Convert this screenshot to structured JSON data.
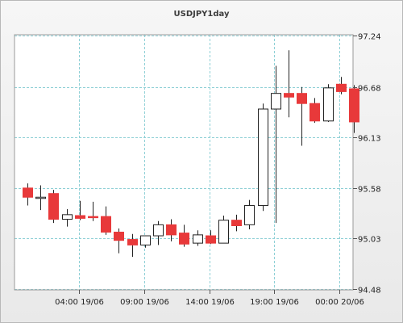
{
  "chart_data": {
    "type": "candlestick",
    "title": "USDJPY1day",
    "y_ticks": [
      "97.24",
      "96.68",
      "96.13",
      "95.58",
      "95.03",
      "94.48"
    ],
    "x_ticks": [
      "04:00 19/06",
      "09:00 19/06",
      "14:00 19/06",
      "19:00 19/06",
      "00:00 20/06"
    ],
    "ylim": [
      94.48,
      97.24
    ],
    "colors": {
      "up": "#ffffff",
      "down": "#e8393a",
      "wick": "#222222",
      "grid": "#8fd0d6",
      "band": "#ffffff"
    },
    "candles": [
      {
        "open": 95.58,
        "high": 95.63,
        "low": 95.39,
        "close": 95.48
      },
      {
        "open": 95.48,
        "high": 95.61,
        "low": 95.34,
        "close": 95.48
      },
      {
        "open": 95.52,
        "high": 95.56,
        "low": 95.2,
        "close": 95.24
      },
      {
        "open": 95.24,
        "high": 95.35,
        "low": 95.16,
        "close": 95.29
      },
      {
        "open": 95.28,
        "high": 95.44,
        "low": 95.23,
        "close": 95.25
      },
      {
        "open": 95.27,
        "high": 95.43,
        "low": 95.22,
        "close": 95.26
      },
      {
        "open": 95.27,
        "high": 95.38,
        "low": 95.07,
        "close": 95.1
      },
      {
        "open": 95.1,
        "high": 95.14,
        "low": 94.87,
        "close": 95.01
      },
      {
        "open": 95.02,
        "high": 95.08,
        "low": 94.83,
        "close": 94.96
      },
      {
        "open": 94.96,
        "high": 95.06,
        "low": 94.93,
        "close": 95.06
      },
      {
        "open": 95.06,
        "high": 95.22,
        "low": 94.96,
        "close": 95.18
      },
      {
        "open": 95.18,
        "high": 95.24,
        "low": 95.0,
        "close": 95.07
      },
      {
        "open": 95.09,
        "high": 95.18,
        "low": 94.94,
        "close": 94.97
      },
      {
        "open": 94.98,
        "high": 95.12,
        "low": 94.95,
        "close": 95.07
      },
      {
        "open": 95.06,
        "high": 95.12,
        "low": 94.97,
        "close": 94.98
      },
      {
        "open": 94.98,
        "high": 95.28,
        "low": 94.98,
        "close": 95.23
      },
      {
        "open": 95.23,
        "high": 95.29,
        "low": 95.11,
        "close": 95.17
      },
      {
        "open": 95.18,
        "high": 95.45,
        "low": 95.13,
        "close": 95.39
      },
      {
        "open": 95.39,
        "high": 96.5,
        "low": 95.33,
        "close": 96.44
      },
      {
        "open": 96.44,
        "high": 96.91,
        "low": 95.2,
        "close": 96.61
      },
      {
        "open": 96.61,
        "high": 97.08,
        "low": 96.35,
        "close": 96.57
      },
      {
        "open": 96.61,
        "high": 96.68,
        "low": 96.04,
        "close": 96.5
      },
      {
        "open": 96.5,
        "high": 96.56,
        "low": 96.29,
        "close": 96.31
      },
      {
        "open": 96.31,
        "high": 96.71,
        "low": 96.3,
        "close": 96.67
      },
      {
        "open": 96.71,
        "high": 96.79,
        "low": 96.6,
        "close": 96.63
      },
      {
        "open": 96.66,
        "high": 96.7,
        "low": 96.18,
        "close": 96.3
      }
    ]
  }
}
